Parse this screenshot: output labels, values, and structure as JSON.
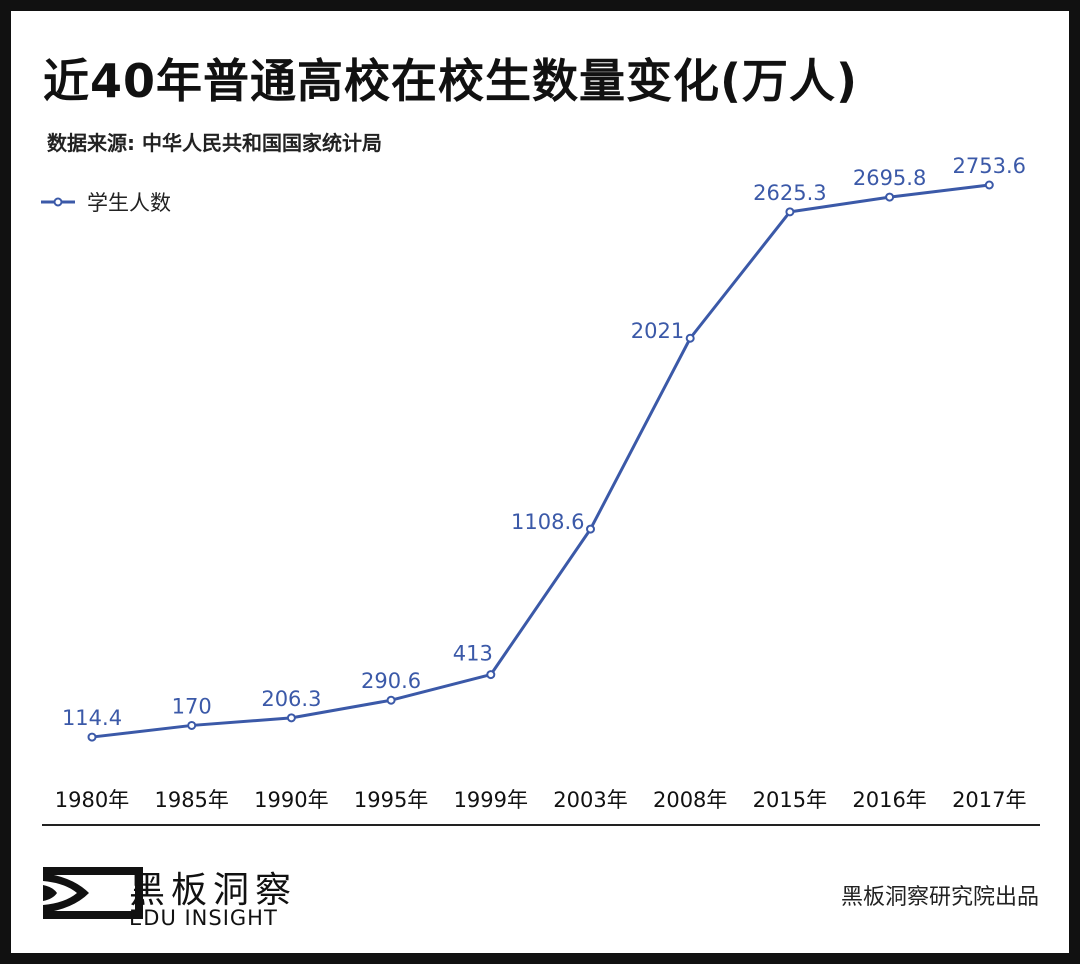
{
  "title": "近40年普通高校在校生数量变化(万人)",
  "source": "数据来源: 中华人民共和国国家统计局",
  "brand": {
    "name_cn": "黑板洞察",
    "name_en": "EDU INSIGHT"
  },
  "credit": "黑板洞察研究院出品",
  "colors": {
    "line": "#3b59a8",
    "text": "#111111",
    "border": "#111111"
  },
  "chart_data": {
    "type": "line",
    "title": "近40年普通高校在校生数量变化(万人)",
    "xlabel": "",
    "ylabel": "",
    "categories": [
      "1980年",
      "1985年",
      "1990年",
      "1995年",
      "1999年",
      "2003年",
      "2008年",
      "2015年",
      "2016年",
      "2017年"
    ],
    "series": [
      {
        "name": "学生人数",
        "values": [
          114.4,
          170,
          206.3,
          290.6,
          413,
          1108.6,
          2021,
          2625.3,
          2695.8,
          2753.6
        ]
      }
    ],
    "ylim": [
      0,
      2753.6
    ],
    "grid": false,
    "legend": "top-left"
  }
}
